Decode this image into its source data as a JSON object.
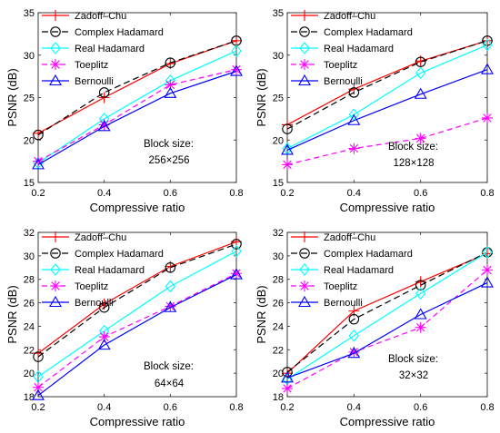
{
  "chart_data": [
    {
      "type": "line",
      "x": [
        0.2,
        0.4,
        0.6,
        0.8
      ],
      "xlabel": "Compressive ratio",
      "ylabel": "PSNR (dB)",
      "xlim": [
        0.2,
        0.8
      ],
      "ylim": [
        15,
        35
      ],
      "xticks": [
        "0.2",
        "0.4",
        "0.6",
        "0.8"
      ],
      "yticks": [
        "15",
        "20",
        "25",
        "30",
        "35"
      ],
      "annotation": [
        "Block size:",
        "256×256"
      ],
      "legend_position": "top-left",
      "series": [
        {
          "name": "Zadoff–Chu",
          "values": [
            20.8,
            25.0,
            29.0,
            31.7
          ]
        },
        {
          "name": "Complex Hadamard",
          "values": [
            20.6,
            25.6,
            29.1,
            31.7
          ]
        },
        {
          "name": "Real Hadamard",
          "values": [
            17.3,
            22.5,
            27.0,
            30.5
          ]
        },
        {
          "name": "Toeplitz",
          "values": [
            17.5,
            21.8,
            26.5,
            28.3
          ]
        },
        {
          "name": "Bernoulli",
          "values": [
            17.1,
            21.6,
            25.5,
            28.1
          ]
        }
      ]
    },
    {
      "type": "line",
      "x": [
        0.2,
        0.4,
        0.6,
        0.8
      ],
      "xlabel": "Compressive ratio",
      "ylabel": "PSNR (dB)",
      "xlim": [
        0.2,
        0.8
      ],
      "ylim": [
        15,
        35
      ],
      "xticks": [
        "0.2",
        "0.4",
        "0.6",
        "0.8"
      ],
      "yticks": [
        "15",
        "20",
        "25",
        "30",
        "35"
      ],
      "annotation": [
        "Block size:",
        "128×128"
      ],
      "legend_position": "top-left",
      "series": [
        {
          "name": "Zadoff–Chu",
          "values": [
            21.8,
            26.0,
            29.3,
            31.7
          ]
        },
        {
          "name": "Complex Hadamard",
          "values": [
            21.3,
            25.6,
            29.2,
            31.7
          ]
        },
        {
          "name": "Real Hadamard",
          "values": [
            19.0,
            23.0,
            27.9,
            31.2
          ]
        },
        {
          "name": "Toeplitz",
          "values": [
            17.1,
            19.0,
            20.2,
            22.6
          ]
        },
        {
          "name": "Bernoulli",
          "values": [
            18.8,
            22.3,
            25.4,
            28.3
          ]
        }
      ]
    },
    {
      "type": "line",
      "x": [
        0.2,
        0.4,
        0.6,
        0.8
      ],
      "xlabel": "Compressive ratio",
      "ylabel": "PSNR (dB)",
      "xlim": [
        0.2,
        0.8
      ],
      "ylim": [
        18,
        32
      ],
      "xticks": [
        "0.2",
        "0.4",
        "0.6",
        "0.8"
      ],
      "yticks": [
        "18",
        "20",
        "22",
        "24",
        "26",
        "28",
        "30",
        "32"
      ],
      "annotation": [
        "Block size:",
        "64×64"
      ],
      "legend_position": "top-left",
      "series": [
        {
          "name": "Zadoff–Chu",
          "values": [
            21.7,
            25.9,
            29.1,
            31.2
          ]
        },
        {
          "name": "Complex Hadamard",
          "values": [
            21.4,
            25.6,
            29.0,
            31.0
          ]
        },
        {
          "name": "Real Hadamard",
          "values": [
            19.7,
            23.6,
            27.4,
            30.4
          ]
        },
        {
          "name": "Toeplitz",
          "values": [
            18.8,
            23.1,
            25.7,
            28.5
          ]
        },
        {
          "name": "Bernoulli",
          "values": [
            18.1,
            22.4,
            25.6,
            28.4
          ]
        }
      ]
    },
    {
      "type": "line",
      "x": [
        0.2,
        0.4,
        0.6,
        0.8
      ],
      "xlabel": "Compressive ratio",
      "ylabel": "PSNR (dB)",
      "xlim": [
        0.2,
        0.8
      ],
      "ylim": [
        18,
        32
      ],
      "xticks": [
        "0.2",
        "0.4",
        "0.6",
        "0.8"
      ],
      "yticks": [
        "18",
        "20",
        "22",
        "24",
        "26",
        "28",
        "30",
        "32"
      ],
      "annotation": [
        "Block size:",
        "32×32"
      ],
      "legend_position": "top-left",
      "series": [
        {
          "name": "Zadoff–Chu",
          "values": [
            20.0,
            25.3,
            27.8,
            30.2
          ]
        },
        {
          "name": "Complex Hadamard",
          "values": [
            20.1,
            24.6,
            27.5,
            30.3
          ]
        },
        {
          "name": "Real Hadamard",
          "values": [
            19.5,
            23.2,
            26.8,
            30.3
          ]
        },
        {
          "name": "Toeplitz",
          "values": [
            18.7,
            21.8,
            23.9,
            28.8
          ]
        },
        {
          "name": "Bernoulli",
          "values": [
            19.6,
            21.7,
            25.0,
            27.7
          ]
        }
      ]
    }
  ],
  "series_style": [
    {
      "color": "#ff0000",
      "marker": "plus",
      "dash": ""
    },
    {
      "color": "#000000",
      "marker": "circle",
      "dash": "7,4"
    },
    {
      "color": "#00ffff",
      "marker": "diamond",
      "dash": ""
    },
    {
      "color": "#ff00ff",
      "marker": "asterisk",
      "dash": "6,4"
    },
    {
      "color": "#0000ff",
      "marker": "triangle",
      "dash": ""
    }
  ]
}
